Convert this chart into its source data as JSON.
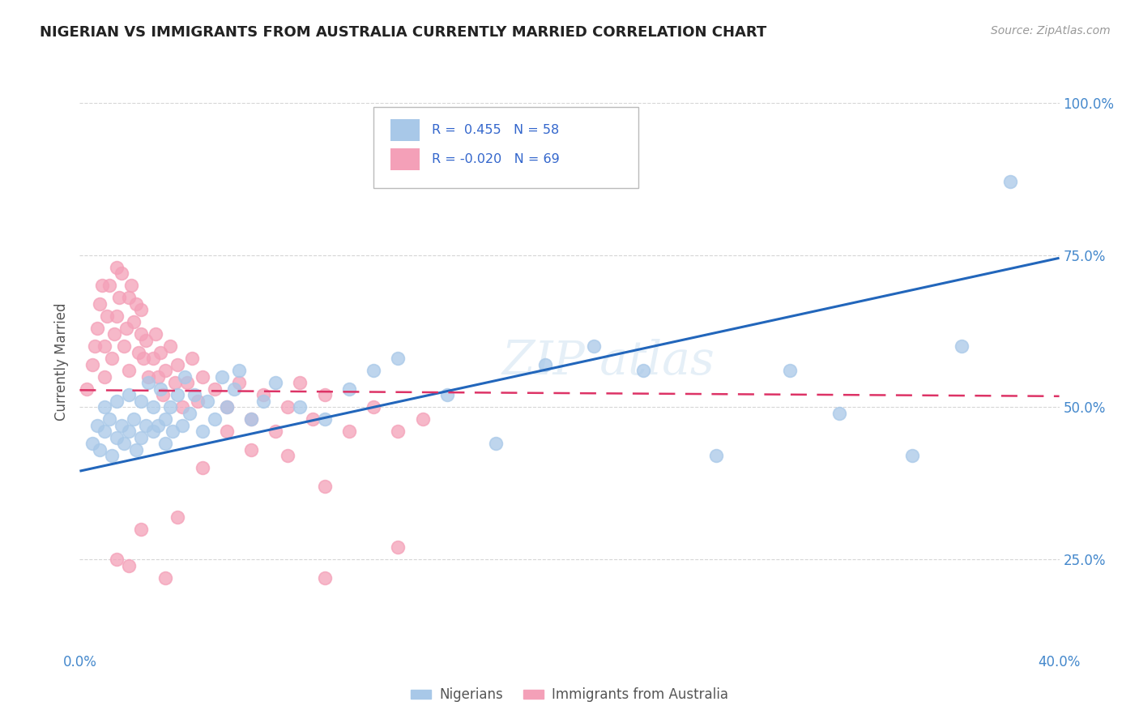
{
  "title": "NIGERIAN VS IMMIGRANTS FROM AUSTRALIA CURRENTLY MARRIED CORRELATION CHART",
  "source": "Source: ZipAtlas.com",
  "ylabel": "Currently Married",
  "x_min": 0.0,
  "x_max": 0.4,
  "y_min": 0.1,
  "y_max": 1.05,
  "x_ticks": [
    0.0,
    0.1,
    0.2,
    0.3,
    0.4
  ],
  "x_tick_labels": [
    "0.0%",
    "",
    "",
    "",
    "40.0%"
  ],
  "y_ticks": [
    0.25,
    0.5,
    0.75,
    1.0
  ],
  "y_tick_labels": [
    "25.0%",
    "50.0%",
    "75.0%",
    "100.0%"
  ],
  "legend_entries": [
    {
      "label": "Nigerians",
      "color": "#a8c8e8",
      "R": 0.455,
      "N": 58
    },
    {
      "label": "Immigrants from Australia",
      "color": "#f4a0b8",
      "R": -0.02,
      "N": 69
    }
  ],
  "nigerian_color": "#a8c8e8",
  "australia_color": "#f4a0b8",
  "nigerian_line_color": "#2266bb",
  "australia_line_color": "#dd3366",
  "grid_color": "#cccccc",
  "nigerian_x": [
    0.005,
    0.007,
    0.008,
    0.01,
    0.01,
    0.012,
    0.013,
    0.015,
    0.015,
    0.017,
    0.018,
    0.02,
    0.02,
    0.022,
    0.023,
    0.025,
    0.025,
    0.027,
    0.028,
    0.03,
    0.03,
    0.032,
    0.033,
    0.035,
    0.035,
    0.037,
    0.038,
    0.04,
    0.042,
    0.043,
    0.045,
    0.047,
    0.05,
    0.052,
    0.055,
    0.058,
    0.06,
    0.063,
    0.065,
    0.07,
    0.075,
    0.08,
    0.09,
    0.1,
    0.11,
    0.12,
    0.13,
    0.15,
    0.17,
    0.19,
    0.21,
    0.23,
    0.26,
    0.29,
    0.31,
    0.34,
    0.36,
    0.38
  ],
  "nigerian_y": [
    0.44,
    0.47,
    0.43,
    0.5,
    0.46,
    0.48,
    0.42,
    0.45,
    0.51,
    0.47,
    0.44,
    0.46,
    0.52,
    0.48,
    0.43,
    0.45,
    0.51,
    0.47,
    0.54,
    0.46,
    0.5,
    0.47,
    0.53,
    0.48,
    0.44,
    0.5,
    0.46,
    0.52,
    0.47,
    0.55,
    0.49,
    0.52,
    0.46,
    0.51,
    0.48,
    0.55,
    0.5,
    0.53,
    0.56,
    0.48,
    0.51,
    0.54,
    0.5,
    0.48,
    0.53,
    0.56,
    0.58,
    0.52,
    0.44,
    0.57,
    0.6,
    0.56,
    0.42,
    0.56,
    0.49,
    0.42,
    0.6,
    0.87
  ],
  "australia_x": [
    0.003,
    0.005,
    0.006,
    0.007,
    0.008,
    0.009,
    0.01,
    0.01,
    0.011,
    0.012,
    0.013,
    0.014,
    0.015,
    0.015,
    0.016,
    0.017,
    0.018,
    0.019,
    0.02,
    0.02,
    0.021,
    0.022,
    0.023,
    0.024,
    0.025,
    0.025,
    0.026,
    0.027,
    0.028,
    0.03,
    0.031,
    0.032,
    0.033,
    0.034,
    0.035,
    0.037,
    0.039,
    0.04,
    0.042,
    0.044,
    0.046,
    0.048,
    0.05,
    0.055,
    0.06,
    0.065,
    0.07,
    0.075,
    0.08,
    0.085,
    0.09,
    0.095,
    0.1,
    0.11,
    0.12,
    0.13,
    0.14,
    0.05,
    0.07,
    0.1,
    0.085,
    0.06,
    0.025,
    0.13,
    0.1,
    0.035,
    0.02,
    0.015,
    0.04
  ],
  "australia_y": [
    0.53,
    0.57,
    0.6,
    0.63,
    0.67,
    0.7,
    0.55,
    0.6,
    0.65,
    0.7,
    0.58,
    0.62,
    0.65,
    0.73,
    0.68,
    0.72,
    0.6,
    0.63,
    0.56,
    0.68,
    0.7,
    0.64,
    0.67,
    0.59,
    0.62,
    0.66,
    0.58,
    0.61,
    0.55,
    0.58,
    0.62,
    0.55,
    0.59,
    0.52,
    0.56,
    0.6,
    0.54,
    0.57,
    0.5,
    0.54,
    0.58,
    0.51,
    0.55,
    0.53,
    0.5,
    0.54,
    0.48,
    0.52,
    0.46,
    0.5,
    0.54,
    0.48,
    0.52,
    0.46,
    0.5,
    0.46,
    0.48,
    0.4,
    0.43,
    0.37,
    0.42,
    0.46,
    0.3,
    0.27,
    0.22,
    0.22,
    0.24,
    0.25,
    0.32
  ]
}
